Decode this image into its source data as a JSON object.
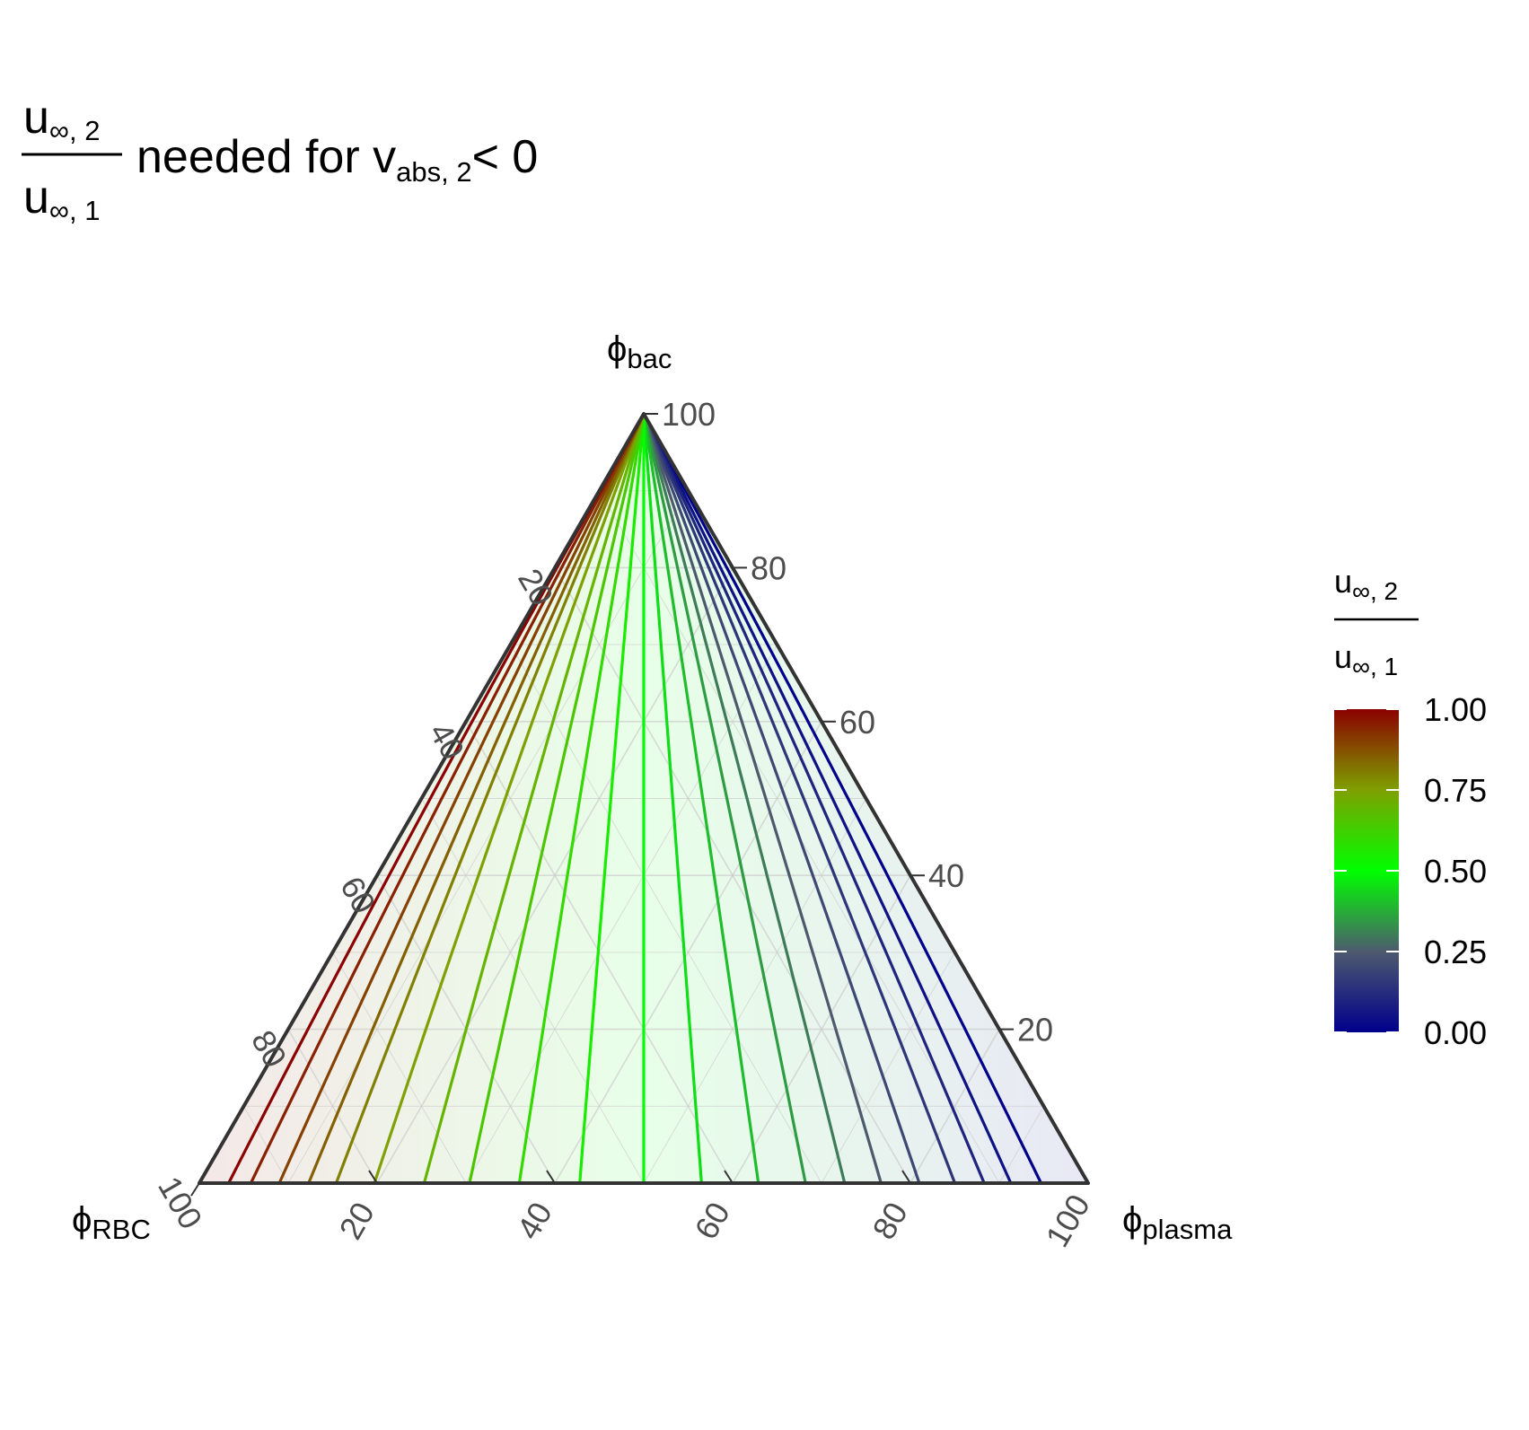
{
  "title": {
    "frac_num": "u",
    "frac_num_sub": "∞, 2",
    "frac_den": "u",
    "frac_den_sub": "∞, 1",
    "text_main": "needed for v",
    "text_sub": "abs, 2",
    "text_end": "< 0"
  },
  "axes": {
    "top": {
      "symbol": "ϕ",
      "sub": "bac"
    },
    "left": {
      "symbol": "ϕ",
      "sub": "RBC"
    },
    "right": {
      "symbol": "ϕ",
      "sub": "plasma"
    }
  },
  "legend": {
    "num": "u",
    "num_sub": "∞, 2",
    "den": "u",
    "den_sub": "∞, 1",
    "ticks": [
      {
        "value": 1.0,
        "label": "1.00"
      },
      {
        "value": 0.75,
        "label": "0.75"
      },
      {
        "value": 0.5,
        "label": "0.50"
      },
      {
        "value": 0.25,
        "label": "0.25"
      },
      {
        "value": 0.0,
        "label": "0.00"
      }
    ],
    "colors": [
      "#00008B",
      "#4d5a6e",
      "#00FF00",
      "#7fa000",
      "#8B0000"
    ]
  },
  "chart_data": {
    "type": "ternary-contour",
    "axis_ticks": [
      "20",
      "40",
      "60",
      "80",
      "100"
    ],
    "axis_tick_values": [
      20,
      40,
      60,
      80,
      100
    ],
    "grid": true,
    "legend_position": "right",
    "contour_levels": [
      0.0,
      0.05,
      0.1,
      0.15,
      0.2,
      0.25,
      0.3,
      0.35,
      0.4,
      0.45,
      0.5,
      0.55,
      0.6,
      0.65,
      0.7,
      0.75,
      0.8,
      0.85,
      0.9,
      0.95,
      1.0
    ],
    "contour_base_fraction": [
      0.053,
      0.087,
      0.117,
      0.15,
      0.19,
      0.233,
      0.274,
      0.318,
      0.371,
      0.435,
      0.5,
      0.572,
      0.64,
      0.696,
      0.747,
      0.803,
      0.846,
      0.877,
      0.91,
      0.942,
      0.967
    ],
    "color_scale": [
      "#00008B",
      "#4d5a6e",
      "#00FF00",
      "#7fa000",
      "#8B0000"
    ]
  }
}
